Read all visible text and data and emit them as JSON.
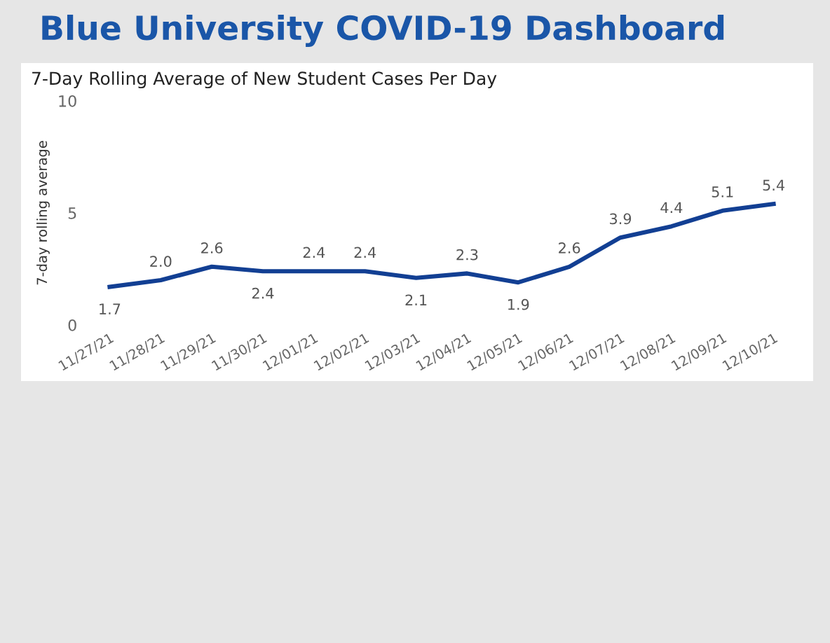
{
  "chart_data": {
    "type": "line",
    "title": "Blue University COVID-19 Dashboard",
    "subtitle": "7-Day Rolling Average of New Student Cases Per Day",
    "ylabel": "7-day rolling average",
    "categories": [
      "11/27/21",
      "11/28/21",
      "11/29/21",
      "11/30/21",
      "12/01/21",
      "12/02/21",
      "12/03/21",
      "12/04/21",
      "12/05/21",
      "12/06/21",
      "12/07/21",
      "12/08/21",
      "12/09/21",
      "12/10/21"
    ],
    "series": [
      {
        "color": "#123f93",
        "values": [
          1.7,
          2.0,
          2.6,
          2.4,
          2.4,
          2.4,
          2.1,
          2.3,
          1.9,
          2.6,
          3.9,
          4.4,
          5.1,
          5.4
        ],
        "value_labels": [
          "1.7",
          "2.0",
          "2.6",
          "2.4",
          "2.4",
          "2.4",
          "2.1",
          "2.3",
          "1.9",
          "2.6",
          "3.9",
          "4.4",
          "5.1",
          "5.4"
        ]
      }
    ],
    "ylim": [
      0,
      10
    ],
    "yticks": [
      0,
      5,
      10
    ],
    "grid": false,
    "legend": false,
    "marker": "none",
    "line_style": "solid"
  }
}
